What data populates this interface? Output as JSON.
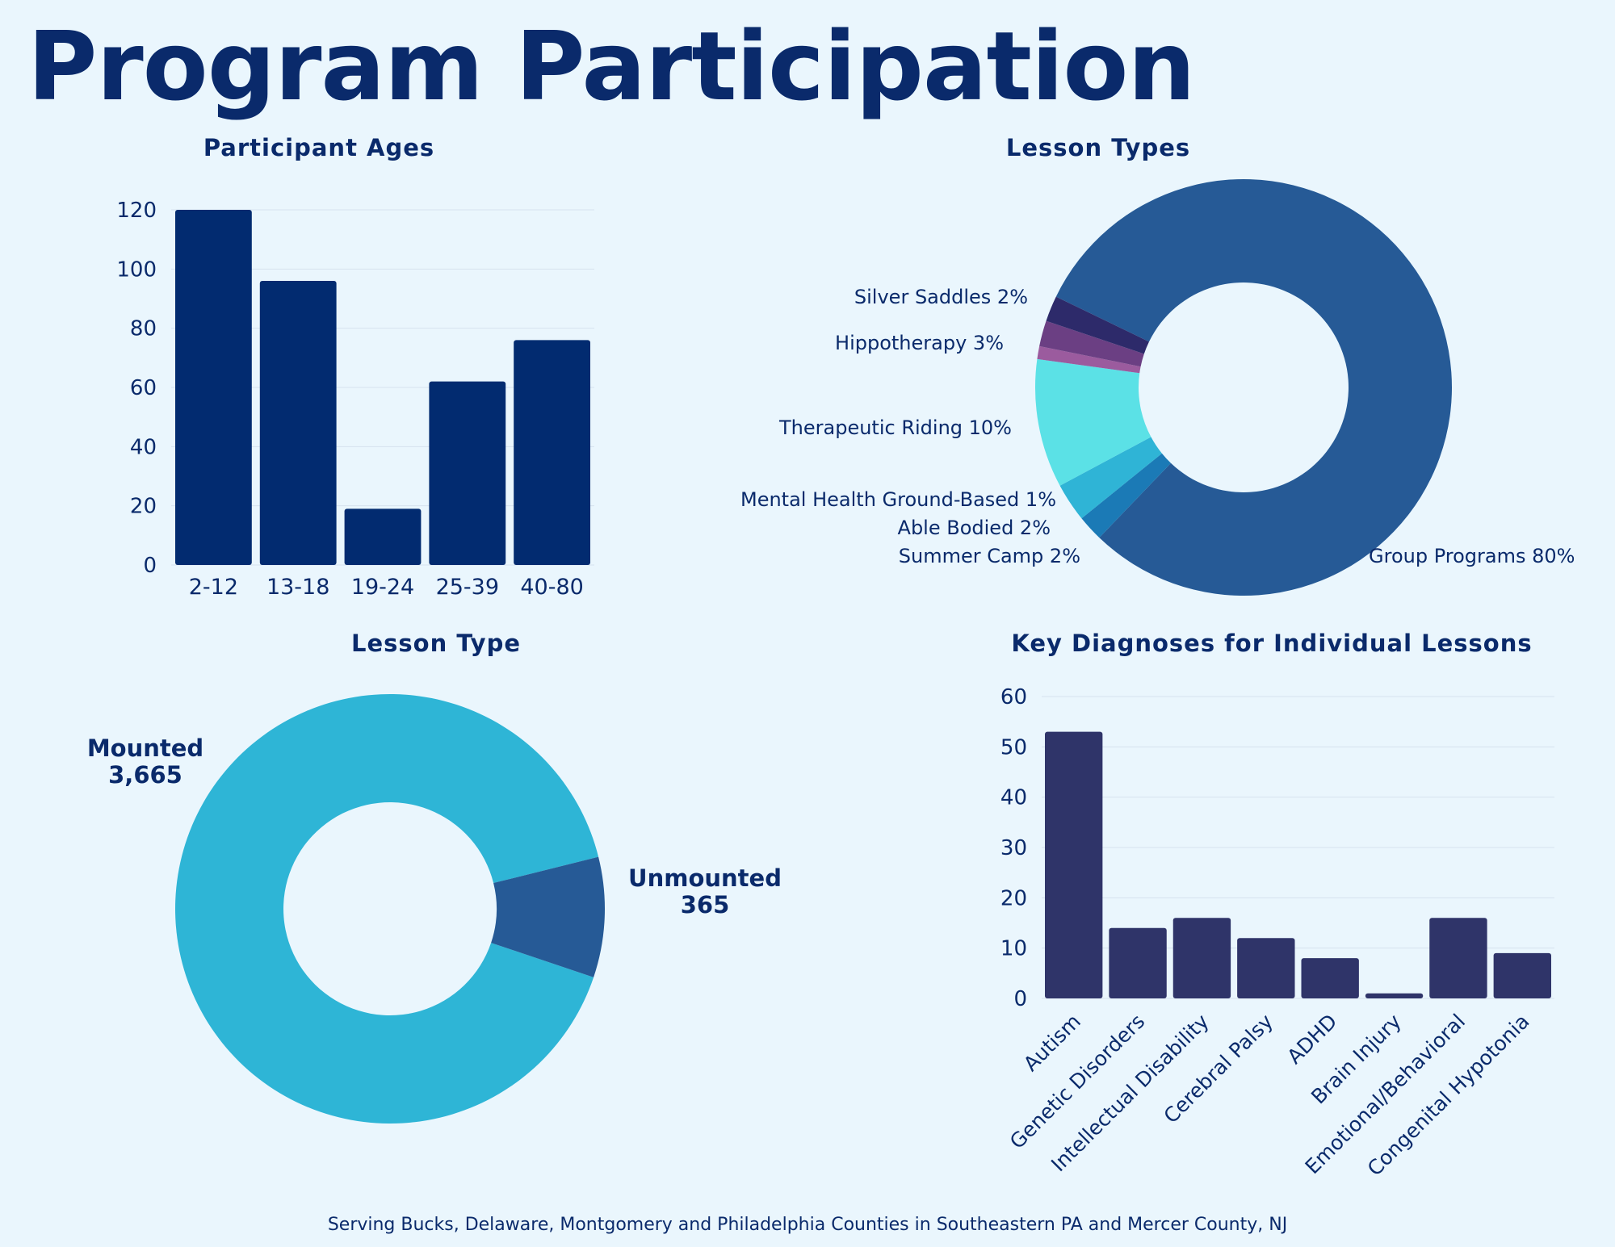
{
  "page": {
    "title": "Program Participation",
    "footer": "Serving Bucks, Delaware, Montgomery and Philadelphia Counties in Southeastern PA and Mercer County, NJ"
  },
  "colors": {
    "background": "#eaf6fd",
    "title": "#0a2a6b",
    "bar_navy": "#022b70",
    "bar_indigo": "#2f3469",
    "grid": "#d5e2ee"
  },
  "chart_data": [
    {
      "id": "ages",
      "type": "bar",
      "title": "Participant Ages",
      "categories": [
        "2-12",
        "13-18",
        "19-24",
        "25-39",
        "40-80"
      ],
      "values": [
        120,
        96,
        19,
        62,
        76
      ],
      "ylim": [
        0,
        120
      ],
      "yticks": [
        "0",
        "20",
        "40",
        "60",
        "80",
        "100",
        "120"
      ],
      "xlabel": "",
      "ylabel": "",
      "grid": true
    },
    {
      "id": "lesson_types",
      "type": "pie",
      "title": "Lesson Types",
      "labels": [
        "Group Programs",
        "Silver Saddles",
        "Hippotherapy",
        "Therapeutic Riding",
        "Mental Health Ground-Based",
        "Able Bodied",
        "Summer Camp"
      ],
      "values": [
        80,
        2,
        3,
        10,
        1,
        2,
        2
      ],
      "display_labels": [
        "Group Programs 80%",
        "Silver Saddles 2%",
        "Hippotherapy 3%",
        "Therapeutic Riding 10%",
        "Mental Health Ground-Based 1%",
        "Able Bodied 2%",
        "Summer Camp 2%"
      ],
      "colors": [
        "#265a96",
        "#1b7ab6",
        "#2fb4d6",
        "#5be1e6",
        "#9b5b9e",
        "#6b3f83",
        "#2d2a6a"
      ],
      "donut": true
    },
    {
      "id": "lesson_type",
      "type": "pie",
      "title": "Lesson Type",
      "labels": [
        "Mounted",
        "Unmounted"
      ],
      "values": [
        3665,
        365
      ],
      "value_labels": [
        "3,665",
        "365"
      ],
      "colors": [
        "#2eb5d6",
        "#265a96"
      ],
      "donut": true
    },
    {
      "id": "diagnoses",
      "type": "bar",
      "title": "Key Diagnoses for Individual Lessons",
      "categories": [
        "Autism",
        "Genetic Disorders",
        "Intellectual Disability",
        "Cerebral Palsy",
        "ADHD",
        "Brain Injury",
        "Emotional/Behavioral",
        "Congenital Hypotonia"
      ],
      "values": [
        53,
        14,
        16,
        12,
        8,
        1,
        16,
        9
      ],
      "ylim": [
        0,
        60
      ],
      "yticks": [
        "0",
        "10",
        "20",
        "30",
        "40",
        "50",
        "60"
      ],
      "xlabel": "",
      "ylabel": "",
      "grid": true
    }
  ]
}
